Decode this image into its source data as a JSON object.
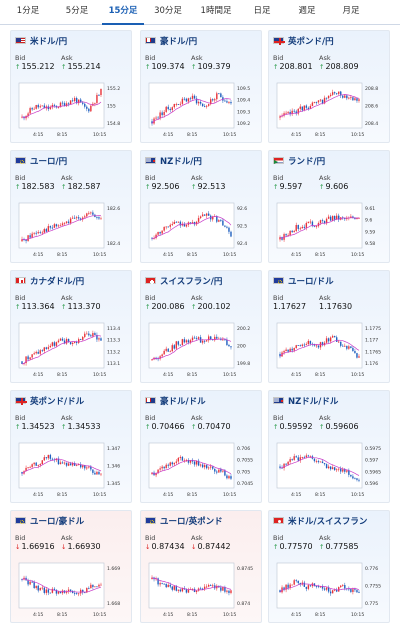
{
  "tabs": [
    {
      "label": "1分足",
      "active": false
    },
    {
      "label": "5分足",
      "active": false
    },
    {
      "label": "15分足",
      "active": true
    },
    {
      "label": "30分足",
      "active": false
    },
    {
      "label": "1時間足",
      "active": false
    },
    {
      "label": "日足",
      "active": false
    },
    {
      "label": "週足",
      "active": false
    },
    {
      "label": "月足",
      "active": false
    }
  ],
  "bid_label": "Bid",
  "ask_label": "Ask",
  "colors": {
    "up": "#e8333a",
    "down": "#1f5fbf",
    "ma": "#c83cc8",
    "accent": "#1a5fb4",
    "bid_up_arrow": "#2a9a4a",
    "bid_down_arrow": "#dd2222"
  },
  "x_ticks": [
    "4:15",
    "8:15",
    "10:15"
  ],
  "cards": [
    {
      "title": "米ドル/円",
      "flag": "us",
      "bid": "155.212",
      "ask": "155.214",
      "dir": "up",
      "yticks": [
        "155.2",
        "155",
        "154.8"
      ],
      "seed": 11,
      "trend": [
        0.2,
        0.5,
        0.45,
        0.55,
        0.7,
        0.4,
        0.9
      ]
    },
    {
      "title": "豪ドル/円",
      "flag": "au",
      "bid": "109.374",
      "ask": "109.379",
      "dir": "up",
      "yticks": [
        "109.5",
        "109.4",
        "109.3",
        "109.2"
      ],
      "seed": 23,
      "trend": [
        0.1,
        0.4,
        0.6,
        0.75,
        0.5,
        0.8,
        0.6
      ]
    },
    {
      "title": "英ポンド/円",
      "flag": "gb",
      "bid": "208.801",
      "ask": "208.809",
      "dir": "up",
      "yticks": [
        "208.8",
        "208.6",
        "208.4"
      ],
      "seed": 37,
      "trend": [
        0.2,
        0.35,
        0.5,
        0.6,
        0.85,
        0.8,
        0.7
      ]
    },
    {
      "title": "ユーロ/円",
      "flag": "eu",
      "bid": "182.583",
      "ask": "182.587",
      "dir": "up",
      "yticks": [
        "182.6",
        "182.4"
      ],
      "seed": 41,
      "trend": [
        0.1,
        0.35,
        0.45,
        0.55,
        0.7,
        0.85,
        0.7
      ]
    },
    {
      "title": "NZドル/円",
      "flag": "nz",
      "bid": "92.506",
      "ask": "92.513",
      "dir": "up",
      "yticks": [
        "92.6",
        "92.5",
        "92.4"
      ],
      "seed": 53,
      "trend": [
        0.2,
        0.5,
        0.6,
        0.55,
        0.8,
        0.7,
        0.3
      ]
    },
    {
      "title": "ランド/円",
      "flag": "za",
      "bid": "9.597",
      "ask": "9.606",
      "dir": "up",
      "yticks": [
        "9.61",
        "9.6",
        "9.59",
        "9.58"
      ],
      "seed": 67,
      "trend": [
        0.15,
        0.45,
        0.55,
        0.6,
        0.75,
        0.7,
        0.8
      ]
    },
    {
      "title": "カナダドル/円",
      "flag": "ca",
      "bid": "113.364",
      "ask": "113.370",
      "dir": "up",
      "yticks": [
        "113.4",
        "113.3",
        "113.2",
        "113.1"
      ],
      "seed": 71,
      "trend": [
        0.1,
        0.3,
        0.5,
        0.65,
        0.6,
        0.85,
        0.7
      ]
    },
    {
      "title": "スイスフラン/円",
      "flag": "ch",
      "bid": "200.086",
      "ask": "200.102",
      "dir": "up",
      "yticks": [
        "200.2",
        "200",
        "199.8"
      ],
      "seed": 83,
      "trend": [
        0.15,
        0.35,
        0.6,
        0.7,
        0.65,
        0.8,
        0.45
      ]
    },
    {
      "title": "ユーロ/ドル",
      "flag": "eu",
      "bid": "1.17627",
      "ask": "1.17630",
      "dir": "none",
      "yticks": [
        "1.1775",
        "1.177",
        "1.1765",
        "1.176"
      ],
      "seed": 97,
      "trend": [
        0.3,
        0.45,
        0.6,
        0.55,
        0.75,
        0.5,
        0.2
      ]
    },
    {
      "title": "英ポンド/ドル",
      "flag": "gb",
      "bid": "1.34523",
      "ask": "1.34533",
      "dir": "up",
      "yticks": [
        "1.347",
        "1.346",
        "1.345"
      ],
      "seed": 101,
      "trend": [
        0.35,
        0.55,
        0.75,
        0.6,
        0.5,
        0.45,
        0.25
      ]
    },
    {
      "title": "豪ドル/ドル",
      "flag": "au",
      "bid": "0.70466",
      "ask": "0.70470",
      "dir": "up",
      "yticks": [
        "0.706",
        "0.7055",
        "0.705",
        "0.7045"
      ],
      "seed": 113,
      "trend": [
        0.3,
        0.55,
        0.7,
        0.6,
        0.55,
        0.4,
        0.2
      ]
    },
    {
      "title": "NZドル/ドル",
      "flag": "nz",
      "bid": "0.59592",
      "ask": "0.59606",
      "dir": "up",
      "yticks": [
        "0.5975",
        "0.597",
        "0.5965",
        "0.596"
      ],
      "seed": 127,
      "trend": [
        0.5,
        0.7,
        0.75,
        0.6,
        0.45,
        0.35,
        0.15
      ]
    },
    {
      "title": "ユーロ/豪ドル",
      "flag": "eu",
      "bid": "1.66916",
      "ask": "1.66930",
      "dir": "down",
      "yticks": [
        "1.669",
        "1.668"
      ],
      "seed": 131,
      "trend": [
        0.7,
        0.5,
        0.35,
        0.4,
        0.3,
        0.45,
        0.55
      ]
    },
    {
      "title": "ユーロ/英ポンド",
      "flag": "eu",
      "bid": "0.87434",
      "ask": "0.87442",
      "dir": "down",
      "yticks": [
        "0.8745",
        "0.874"
      ],
      "seed": 139,
      "trend": [
        0.7,
        0.55,
        0.4,
        0.35,
        0.5,
        0.45,
        0.35
      ]
    },
    {
      "title": "米ドル/スイスフラン",
      "flag": "hk",
      "bid": "0.77570",
      "ask": "0.77585",
      "dir": "up",
      "yticks": [
        "0.776",
        "0.7755",
        "0.775"
      ],
      "seed": 149,
      "trend": [
        0.4,
        0.6,
        0.5,
        0.55,
        0.35,
        0.5,
        0.3
      ]
    }
  ]
}
